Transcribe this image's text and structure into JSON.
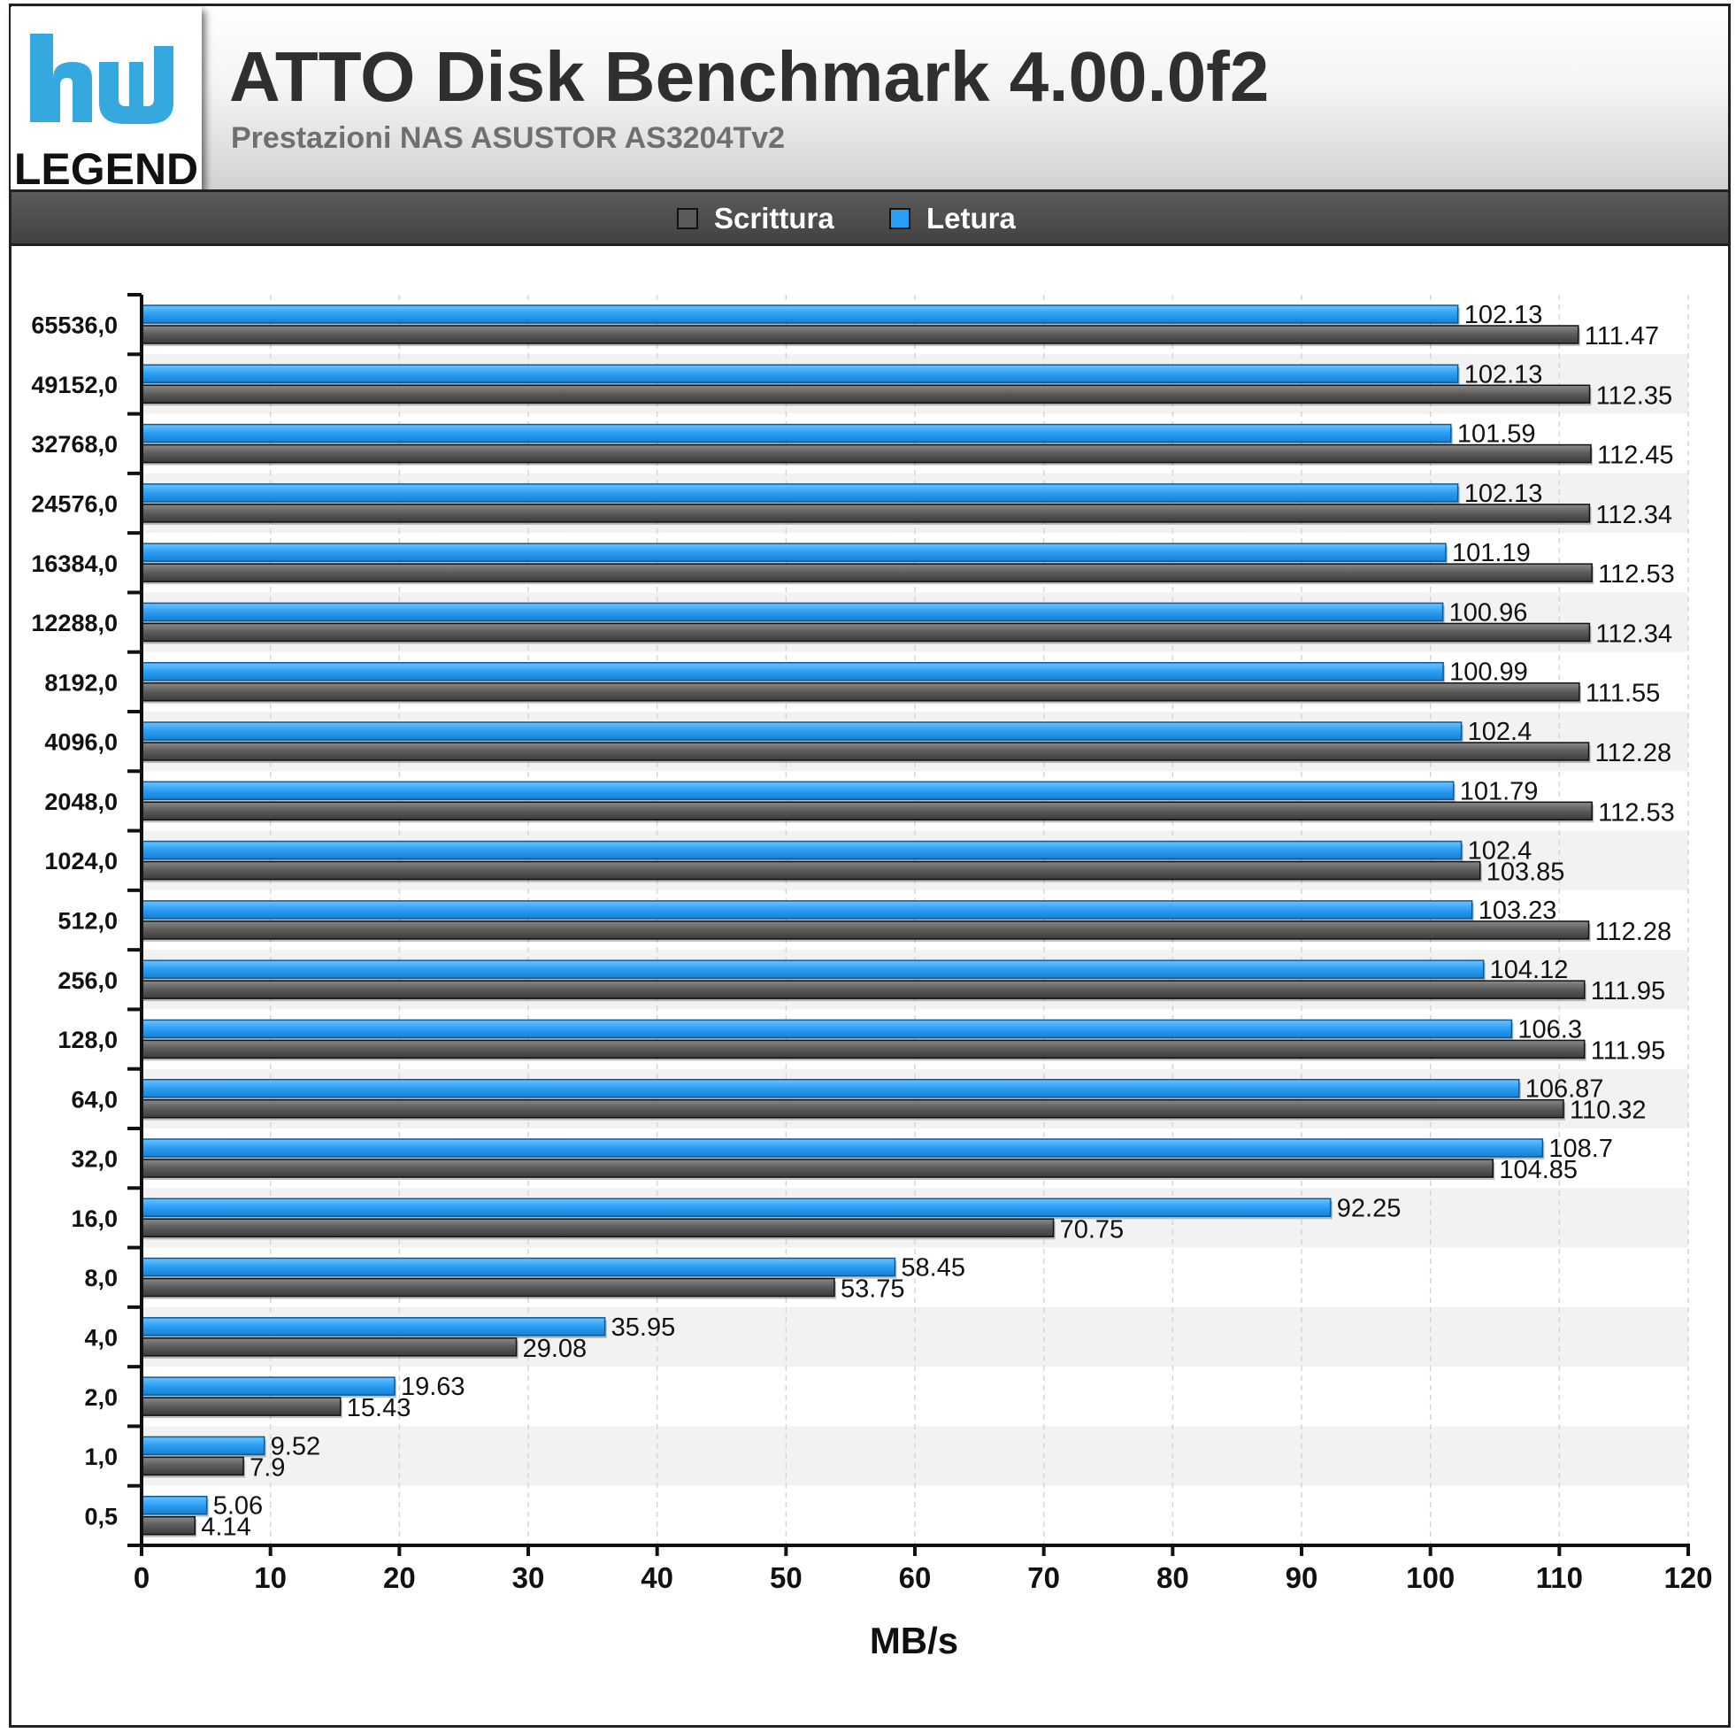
{
  "header": {
    "title": "ATTO Disk Benchmark 4.00.0f2",
    "subtitle": "Prestazioni NAS ASUSTOR AS3204Tv2",
    "logo_text": "LEGEND"
  },
  "colors": {
    "write": "#5a5a5a",
    "read": "#2a9df4",
    "logo_blue": "#35a8e0"
  },
  "chart_data": {
    "type": "bar",
    "orientation": "horizontal",
    "categories": [
      "65536,0",
      "49152,0",
      "32768,0",
      "24576,0",
      "16384,0",
      "12288,0",
      "8192,0",
      "4096,0",
      "2048,0",
      "1024,0",
      "512,0",
      "256,0",
      "128,0",
      "64,0",
      "32,0",
      "16,0",
      "8,0",
      "4,0",
      "2,0",
      "1,0",
      "0,5"
    ],
    "series": [
      {
        "name": "Letura",
        "values": [
          102.13,
          102.13,
          101.59,
          102.13,
          101.19,
          100.96,
          100.99,
          102.4,
          101.79,
          102.4,
          103.23,
          104.12,
          106.3,
          106.87,
          108.7,
          92.25,
          58.45,
          35.95,
          19.63,
          9.52,
          5.06
        ]
      },
      {
        "name": "Scrittura",
        "values": [
          111.47,
          112.35,
          112.45,
          112.34,
          112.53,
          112.34,
          111.55,
          112.28,
          112.53,
          103.85,
          112.28,
          111.95,
          111.95,
          110.32,
          104.85,
          70.75,
          53.75,
          29.08,
          15.43,
          7.9,
          4.14
        ]
      }
    ],
    "legend": [
      "Scrittura",
      "Letura"
    ],
    "legend_placement": "top",
    "xlabel": "MB/s",
    "xlim": [
      0,
      120
    ],
    "xticks": [
      0,
      10,
      20,
      30,
      40,
      50,
      60,
      70,
      80,
      90,
      100,
      110,
      120
    ],
    "grid": true,
    "data_labels": true
  }
}
